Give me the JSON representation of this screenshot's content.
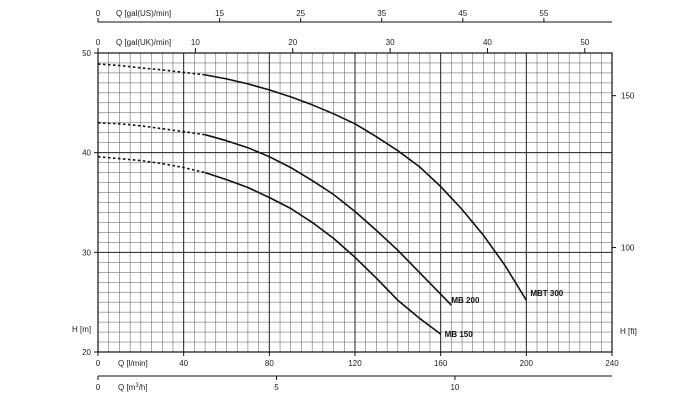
{
  "chart_data": {
    "type": "line",
    "grid": true,
    "x_axis_bottom": {
      "label": "Q [l/min]",
      "range": [
        0,
        240
      ],
      "ticks": [
        0,
        40,
        80,
        120,
        160,
        200,
        240
      ]
    },
    "x_axis_m3h": {
      "label_prefix": "Q [m",
      "label_sup": "3",
      "label_suffix": "/h]",
      "ticks": [
        0,
        5,
        10
      ]
    },
    "x_axis_top_us": {
      "label": "Q [gal(US)/min]",
      "ticks": [
        0,
        15,
        25,
        35,
        45,
        55
      ]
    },
    "x_axis_top_uk": {
      "label": "Q [gal(UK)/min]",
      "ticks": [
        0,
        10,
        20,
        30,
        40,
        50
      ]
    },
    "y_axis_left": {
      "label": "H [m]",
      "range": [
        20,
        50
      ],
      "ticks": [
        20,
        30,
        40,
        50
      ]
    },
    "y_axis_right": {
      "label": "H [ft]",
      "ticks": [
        100,
        150
      ]
    },
    "series": [
      {
        "name": "MBT 300",
        "dashed_until_x": 50,
        "x": [
          0,
          10,
          20,
          30,
          40,
          50,
          60,
          70,
          80,
          90,
          100,
          110,
          120,
          130,
          140,
          150,
          160,
          170,
          180,
          190,
          200
        ],
        "y": [
          48.9,
          48.75,
          48.5,
          48.3,
          48.05,
          47.8,
          47.4,
          46.9,
          46.3,
          45.6,
          44.8,
          43.9,
          42.9,
          41.6,
          40.2,
          38.6,
          36.6,
          34.3,
          31.7,
          28.7,
          25.2
        ]
      },
      {
        "name": "MB 200",
        "dashed_until_x": 50,
        "x": [
          0,
          10,
          20,
          30,
          40,
          50,
          60,
          70,
          80,
          90,
          100,
          110,
          120,
          130,
          140,
          150,
          160,
          165
        ],
        "y": [
          43.0,
          42.9,
          42.7,
          42.4,
          42.1,
          41.8,
          41.2,
          40.5,
          39.6,
          38.5,
          37.2,
          35.8,
          34.1,
          32.2,
          30.2,
          28.0,
          25.8,
          24.7
        ]
      },
      {
        "name": "MB 150",
        "dashed_until_x": 50,
        "x": [
          0,
          10,
          20,
          30,
          40,
          50,
          60,
          70,
          80,
          90,
          100,
          110,
          120,
          130,
          140,
          150,
          160
        ],
        "y": [
          39.6,
          39.4,
          39.2,
          38.9,
          38.5,
          38.0,
          37.3,
          36.5,
          35.5,
          34.4,
          33.0,
          31.4,
          29.5,
          27.4,
          25.2,
          23.4,
          21.8
        ]
      }
    ]
  }
}
